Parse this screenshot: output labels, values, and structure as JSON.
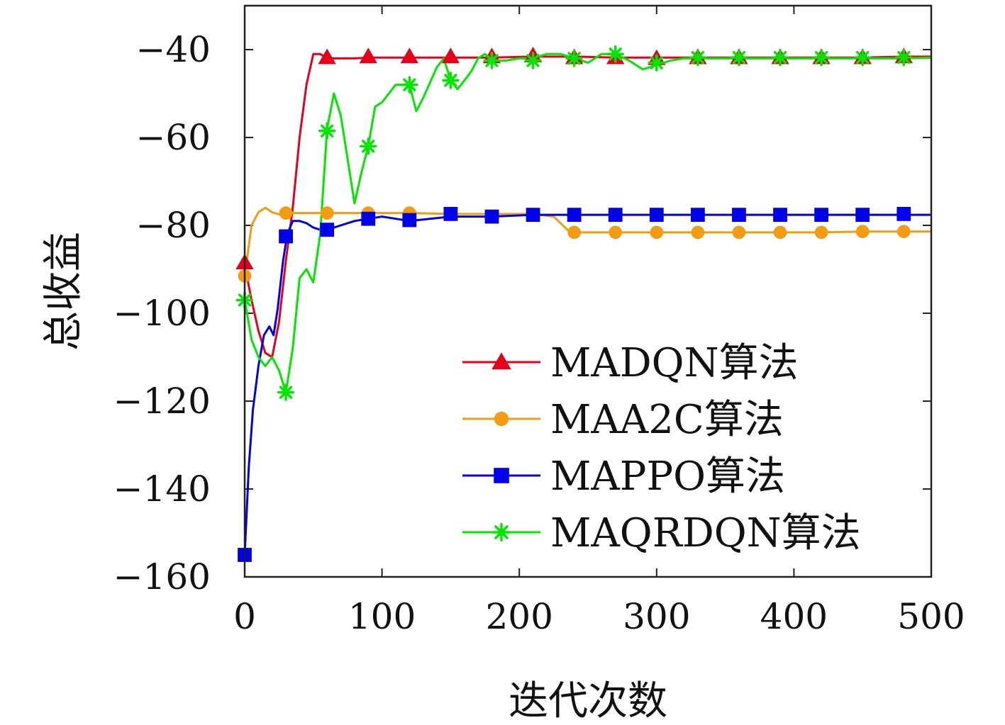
{
  "chart_data": {
    "type": "line",
    "title": "",
    "xlabel": "迭代次数",
    "ylabel": "总收益",
    "xlim": [
      0,
      500
    ],
    "ylim": [
      -160,
      -30
    ],
    "xticks": [
      0,
      100,
      200,
      300,
      400,
      500
    ],
    "yticks": [
      -160,
      -140,
      -120,
      -100,
      -80,
      -60,
      -40
    ],
    "xtick_labels": [
      "0",
      "100",
      "200",
      "300",
      "400",
      "500"
    ],
    "ytick_labels": [
      "−160",
      "−140",
      "−120",
      "−100",
      "−80",
      "−60",
      "−40"
    ],
    "grid": false,
    "legend": "bottom-right",
    "series": [
      {
        "name": "MADQN算法",
        "color": "#e8001a",
        "marker": "triangle",
        "x": [
          0,
          5,
          10,
          15,
          20,
          25,
          30,
          35,
          40,
          45,
          50,
          55,
          60,
          70,
          80,
          90,
          100,
          120,
          150,
          180,
          210,
          240,
          270,
          300,
          330,
          360,
          390,
          420,
          450,
          480,
          500
        ],
        "y": [
          -89,
          -97,
          -104,
          -109,
          -110,
          -102,
          -88,
          -76,
          -60,
          -48,
          -41,
          -41,
          -42,
          -42,
          -42,
          -41.8,
          -41.8,
          -41.8,
          -41.8,
          -41.8,
          -41.6,
          -41.6,
          -41.8,
          -41.8,
          -41.8,
          -41.8,
          -41.8,
          -41.8,
          -41.8,
          -41.6,
          -41.6
        ],
        "marker_x": [
          0,
          60,
          90,
          120,
          150,
          180,
          210,
          240,
          270,
          300,
          330,
          360,
          390,
          420,
          450,
          480
        ],
        "marker_y": [
          -88.5,
          -41.8,
          -41.6,
          -41.6,
          -41.6,
          -41.6,
          -41.4,
          -41.8,
          -41.8,
          -42,
          -41.8,
          -41.8,
          -41.8,
          -41.8,
          -41.8,
          -41.6
        ]
      },
      {
        "name": "MAA2C算法",
        "color": "#f39c12",
        "marker": "circle",
        "x": [
          0,
          5,
          10,
          15,
          20,
          25,
          30,
          60,
          90,
          120,
          150,
          180,
          210,
          225,
          235,
          240,
          270,
          300,
          330,
          360,
          390,
          420,
          450,
          480,
          500
        ],
        "y": [
          -91.5,
          -80,
          -77,
          -76,
          -77,
          -77.5,
          -77.2,
          -77.2,
          -77.2,
          -77.2,
          -77.4,
          -77.4,
          -77.4,
          -78,
          -81,
          -81.6,
          -81.6,
          -81.6,
          -81.6,
          -81.6,
          -81.6,
          -81.6,
          -81.4,
          -81.4,
          -81.4
        ],
        "marker_x": [
          0,
          30,
          60,
          90,
          120,
          240,
          270,
          300,
          330,
          360,
          390,
          420,
          450,
          480
        ],
        "marker_y": [
          -91.5,
          -77.2,
          -77.2,
          -77.2,
          -77.2,
          -81.6,
          -81.6,
          -81.6,
          -81.6,
          -81.6,
          -81.6,
          -81.6,
          -81.4,
          -81.4
        ]
      },
      {
        "name": "MAPPO算法",
        "color": "#0000e8",
        "marker": "square",
        "x": [
          0,
          3,
          6,
          10,
          14,
          18,
          21,
          24,
          28,
          31,
          35,
          40,
          45,
          50,
          55,
          60,
          70,
          80,
          90,
          100,
          110,
          120,
          135,
          150,
          165,
          180,
          195,
          210,
          240,
          270,
          300,
          330,
          360,
          390,
          420,
          450,
          480,
          500
        ],
        "y": [
          -155,
          -135,
          -122,
          -112,
          -105,
          -103,
          -105,
          -99,
          -88,
          -82,
          -79,
          -79,
          -79.5,
          -80.5,
          -81,
          -81,
          -80,
          -79,
          -78.5,
          -78,
          -78.5,
          -79,
          -78.5,
          -78,
          -78,
          -78,
          -77.8,
          -77.6,
          -77.6,
          -77.6,
          -77.6,
          -77.6,
          -77.6,
          -77.6,
          -77.6,
          -77.6,
          -77.6,
          -77.6
        ],
        "marker_x": [
          0,
          30,
          60,
          90,
          120,
          150,
          180,
          210,
          240,
          270,
          300,
          330,
          360,
          390,
          420,
          450,
          480
        ],
        "marker_y": [
          -155,
          -82.5,
          -81,
          -78.5,
          -78.8,
          -77.4,
          -78,
          -77.6,
          -77.6,
          -77.6,
          -77.6,
          -77.6,
          -77.6,
          -77.6,
          -77.6,
          -77.6,
          -77.4
        ]
      },
      {
        "name": "MAQRDQN算法",
        "color": "#00e800",
        "marker": "star",
        "x": [
          0,
          5,
          10,
          15,
          20,
          25,
          30,
          35,
          40,
          45,
          50,
          55,
          60,
          65,
          70,
          75,
          80,
          85,
          90,
          95,
          100,
          110,
          120,
          125,
          130,
          140,
          145,
          150,
          155,
          160,
          165,
          170,
          175,
          180,
          190,
          200,
          210,
          220,
          230,
          240,
          250,
          260,
          270,
          280,
          290,
          300,
          310,
          320,
          330,
          360,
          390,
          420,
          450,
          480,
          500
        ],
        "y": [
          -97,
          -106,
          -110,
          -112,
          -110,
          -113,
          -118,
          -108,
          -92,
          -90,
          -93,
          -82,
          -58,
          -50,
          -55,
          -65,
          -75,
          -68,
          -62,
          -53,
          -52,
          -48,
          -48,
          -54,
          -51,
          -44,
          -42,
          -47,
          -49,
          -47,
          -45,
          -42,
          -41,
          -42.5,
          -42.5,
          -42,
          -42,
          -41,
          -41,
          -42,
          -43,
          -41,
          -41,
          -42.5,
          -44.5,
          -43.5,
          -42.5,
          -42,
          -42,
          -42,
          -42,
          -42,
          -42,
          -42,
          -41.8
        ],
        "marker_x": [
          0,
          30,
          60,
          90,
          120,
          150,
          180,
          210,
          240,
          270,
          300,
          330,
          360,
          390,
          420,
          450,
          480
        ],
        "marker_y": [
          -97,
          -118,
          -58.5,
          -62,
          -48,
          -47,
          -42.5,
          -42.5,
          -42,
          -41,
          -43,
          -41.8,
          -41.8,
          -41.8,
          -41.8,
          -41.8,
          -41.8
        ]
      }
    ]
  }
}
